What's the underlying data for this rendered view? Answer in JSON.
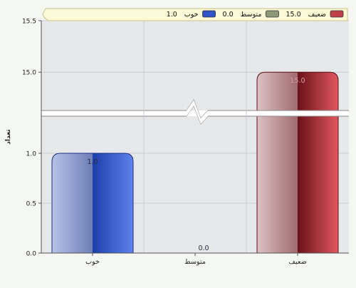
{
  "chart_data": {
    "type": "bar",
    "categories": [
      "خوب",
      "متوسط",
      "ضعیف"
    ],
    "values": [
      1.0,
      0.0,
      15.0
    ],
    "value_labels": [
      "1.0",
      "0.0",
      "15.0"
    ],
    "ylabel": "تعداد",
    "xlabel": "",
    "y_axis": {
      "broken": true,
      "lower_range": [
        0,
        1.4
      ],
      "upper_range": [
        14.6,
        15.5
      ],
      "lower_ticks": [
        "0.0",
        "0.5",
        "1.0"
      ],
      "upper_ticks": [
        "15.0",
        "15.5"
      ]
    },
    "legend": {
      "position": "top",
      "entries": [
        {
          "category": "ضعیف",
          "value": "15.0",
          "color": "#c0404a"
        },
        {
          "category": "متوسط",
          "value": "0.0",
          "color": "#8c9a78"
        },
        {
          "category": "خوب",
          "value": "1.0",
          "color": "#2f52c8"
        }
      ]
    },
    "grid": true,
    "colors": {
      "good": "#2f52c8",
      "medium": "#8c9a78",
      "weak": "#c0404a",
      "plot_background": "#e6e8ea",
      "legend_background": "#fbf9d6",
      "page_background": "#f5f7f3"
    }
  }
}
